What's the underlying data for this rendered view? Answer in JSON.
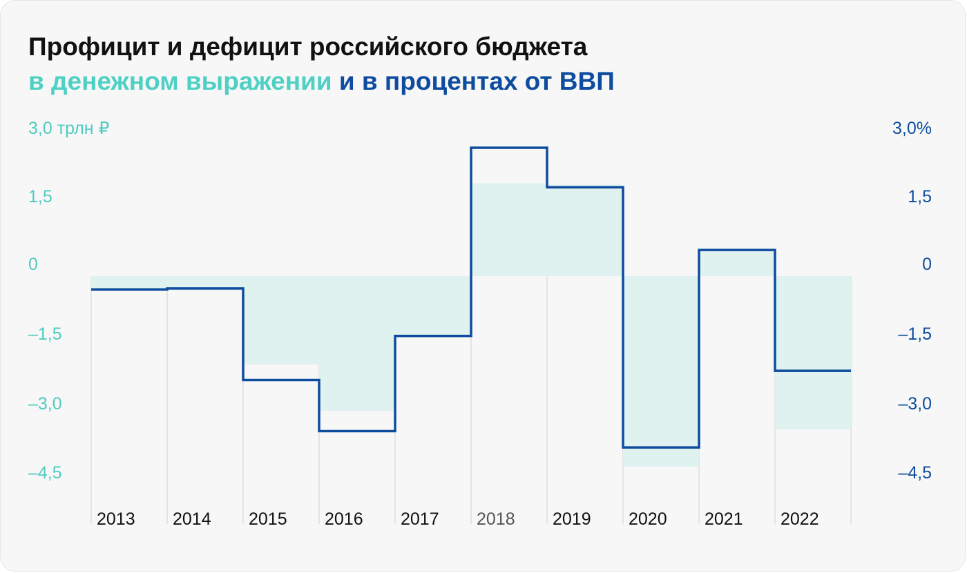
{
  "title": "Профицит и дефицит российского бюджета",
  "subtitle": {
    "part1": "в денежном выражении",
    "part2": "и в процентах от ВВП"
  },
  "colors": {
    "money": "#4fd0c4",
    "money_fill": "#dff2ef",
    "percent": "#0d4c9e",
    "title": "#111111",
    "background": "#f7f7f7",
    "grid": "#dedede"
  },
  "chart_data": {
    "type": "bar",
    "categories": [
      "2013",
      "2014",
      "2015",
      "2016",
      "2017",
      "2018",
      "2019",
      "2020",
      "2021",
      "2022"
    ],
    "highlighted_category": "2018",
    "left_axis": {
      "unit_label": "3,0 трлн ₽",
      "ticks": [
        3.0,
        1.5,
        0,
        -1.5,
        -3.0,
        -4.5
      ],
      "tick_labels": [
        "3,0 трлн ₽",
        "1,5",
        "0",
        "–1,5",
        "–3,0",
        "–4,5"
      ],
      "ylim": [
        -4.5,
        3.0
      ]
    },
    "right_axis": {
      "ticks": [
        3.0,
        1.5,
        0,
        -1.5,
        -3.0,
        -4.5
      ],
      "tick_labels": [
        "3,0%",
        "1,5",
        "0",
        "–1,5",
        "–3,0",
        "–4,5"
      ],
      "ylim": [
        -4.5,
        3.0
      ]
    },
    "series": [
      {
        "kind": "bar",
        "axis": "left",
        "values": [
          -0.32,
          -0.3,
          -1.9,
          -2.9,
          -1.3,
          2.0,
          1.97,
          -4.1,
          0.52,
          -3.3
        ]
      },
      {
        "kind": "step-line",
        "axis": "right",
        "values": [
          -0.45,
          -0.43,
          -2.4,
          -3.5,
          -1.45,
          2.6,
          1.75,
          -3.85,
          0.4,
          -2.2
        ]
      }
    ],
    "grid": "vertical"
  }
}
